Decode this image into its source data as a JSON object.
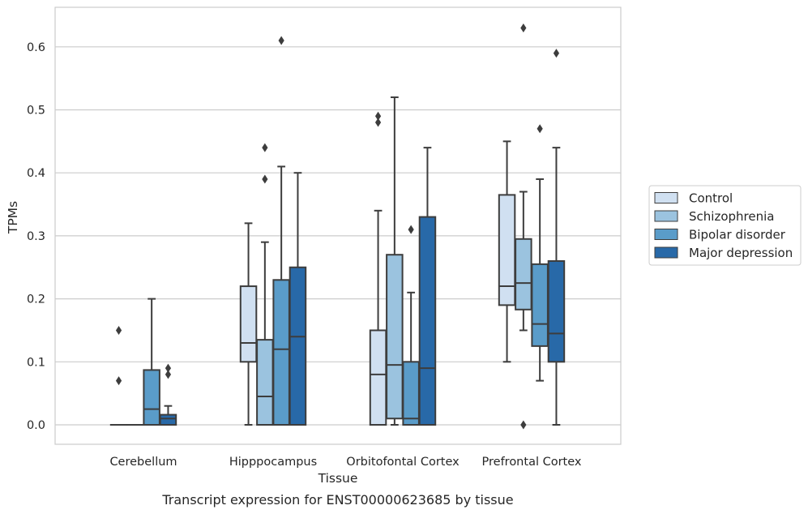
{
  "chart_data": {
    "type": "box",
    "caption": "Transcript expression for ENST00000623685 by tissue",
    "xlabel": "Tissue",
    "ylabel": "TPMs",
    "ylim": [
      -0.03,
      0.66
    ],
    "yticks": [
      "0.0",
      "0.1",
      "0.2",
      "0.3",
      "0.4",
      "0.5",
      "0.6"
    ],
    "grid": true,
    "legend_placement": "right",
    "categories": [
      "Cerebellum",
      "Hipppocampus",
      "Orbitofontal Cortex",
      "Prefrontal Cortex"
    ],
    "series": [
      {
        "name": "Control",
        "color": "#d0e0f1",
        "boxes": [
          {
            "q1": 0.0,
            "median": 0.0,
            "q3": 0.0,
            "whislo": 0.0,
            "whishi": 0.0,
            "fliers": [
              0.15,
              0.07
            ]
          },
          {
            "q1": 0.1,
            "median": 0.13,
            "q3": 0.22,
            "whislo": 0.0,
            "whishi": 0.32,
            "fliers": []
          },
          {
            "q1": 0.0,
            "median": 0.08,
            "q3": 0.15,
            "whislo": 0.0,
            "whishi": 0.34,
            "fliers": [
              0.49,
              0.48
            ]
          },
          {
            "q1": 0.19,
            "median": 0.22,
            "q3": 0.365,
            "whislo": 0.1,
            "whishi": 0.45,
            "fliers": []
          }
        ]
      },
      {
        "name": "Schizophrenia",
        "color": "#9bc3df",
        "boxes": [
          {
            "q1": 0.0,
            "median": 0.0,
            "q3": 0.0,
            "whislo": 0.0,
            "whishi": 0.0,
            "fliers": []
          },
          {
            "q1": 0.0,
            "median": 0.045,
            "q3": 0.135,
            "whislo": 0.0,
            "whishi": 0.29,
            "fliers": [
              0.44,
              0.39
            ]
          },
          {
            "q1": 0.01,
            "median": 0.095,
            "q3": 0.27,
            "whislo": 0.0,
            "whishi": 0.52,
            "fliers": []
          },
          {
            "q1": 0.183,
            "median": 0.225,
            "q3": 0.295,
            "whislo": 0.15,
            "whishi": 0.37,
            "fliers": [
              0.63,
              0.0
            ]
          }
        ]
      },
      {
        "name": "Bipolar disorder",
        "color": "#5a9cc9",
        "boxes": [
          {
            "q1": 0.0,
            "median": 0.025,
            "q3": 0.087,
            "whislo": 0.0,
            "whishi": 0.2,
            "fliers": []
          },
          {
            "q1": 0.0,
            "median": 0.12,
            "q3": 0.23,
            "whislo": 0.0,
            "whishi": 0.41,
            "fliers": [
              0.61
            ]
          },
          {
            "q1": 0.0,
            "median": 0.01,
            "q3": 0.1,
            "whislo": 0.0,
            "whishi": 0.21,
            "fliers": [
              0.31
            ]
          },
          {
            "q1": 0.125,
            "median": 0.16,
            "q3": 0.255,
            "whislo": 0.07,
            "whishi": 0.39,
            "fliers": [
              0.47
            ]
          }
        ]
      },
      {
        "name": "Major depression",
        "color": "#2869a8",
        "boxes": [
          {
            "q1": 0.0,
            "median": 0.01,
            "q3": 0.016,
            "whislo": 0.0,
            "whishi": 0.03,
            "fliers": [
              0.09,
              0.08
            ]
          },
          {
            "q1": 0.0,
            "median": 0.14,
            "q3": 0.25,
            "whislo": 0.0,
            "whishi": 0.4,
            "fliers": []
          },
          {
            "q1": 0.0,
            "median": 0.09,
            "q3": 0.33,
            "whislo": 0.0,
            "whishi": 0.44,
            "fliers": []
          },
          {
            "q1": 0.1,
            "median": 0.145,
            "q3": 0.26,
            "whislo": 0.0,
            "whishi": 0.44,
            "fliers": [
              0.59
            ]
          }
        ]
      }
    ],
    "colors": {
      "grid": "#cccccc",
      "spine": "#cccccc",
      "box_edge": "#3d3d3d",
      "flier": "#3d3d3d"
    }
  }
}
